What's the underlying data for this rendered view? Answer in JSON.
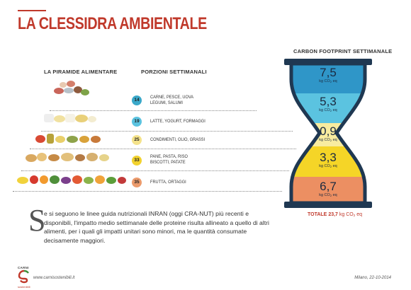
{
  "header": {
    "title": "LA CLESSIDRA AMBIENTALE"
  },
  "columns": {
    "pyramid_heading": "LA PIRAMIDE ALIMENTARE",
    "portions_heading": "PORZIONI SETTIMANALI",
    "carbon_heading": "CARBON FOOTPRINT SETTIMANALE"
  },
  "rows": [
    {
      "portions": "14",
      "label_1": "CARNE, PESCE, UOVA",
      "label_2": "LEGUMI, SALUMI",
      "badge_color": "#3aa8c9"
    },
    {
      "portions": "19",
      "label_1": "LATTE, YOGURT, FORMAGGI",
      "label_2": "",
      "badge_color": "#5bc3e0"
    },
    {
      "portions": "25",
      "label_1": "CONDIMENTI, OLIO, GRASSI",
      "label_2": "",
      "badge_color": "#f4e28a"
    },
    {
      "portions": "33",
      "label_1": "PANE, PASTA, RISO",
      "label_2": "BISCOTTI, PATATE",
      "badge_color": "#f2d22e"
    },
    {
      "portions": "35",
      "label_1": "FRUTTA, ORTAGGI",
      "label_2": "",
      "badge_color": "#ec9b6c"
    }
  ],
  "hourglass": {
    "unit_prefix": "kg CO",
    "unit_sub": "2",
    "unit_suffix": " eq",
    "segments": [
      {
        "value": "7,5",
        "color": "#2f96c8"
      },
      {
        "value": "5,3",
        "color": "#5bc3e0"
      },
      {
        "value": "0,9",
        "color": "#f8ec9f"
      },
      {
        "value": "3,3",
        "color": "#f5d527"
      },
      {
        "value": "6,7",
        "color": "#ec8f62"
      }
    ],
    "frame_color": "#1f3852"
  },
  "total": {
    "label": "TOTALE",
    "value": "23,7",
    "unit_prefix": " kg CO",
    "unit_sub": "2",
    "unit_suffix": " eq"
  },
  "body": {
    "dropcap": "S",
    "text": "e si seguono le linee guida nutrizionali INRAN (oggi CRA-NUT) più recenti e disponibili, l'impatto medio settimanale delle proteine risulta allineato a quello di altri alimenti, per i quali gli impatti unitari sono minori, ma le quantità consumate decisamente maggiori."
  },
  "footer": {
    "logo_text": "CARNI",
    "logo_text_2": "sostenibili",
    "url": "www.carnisostenibili.it",
    "date_place": "Milano, 22-10-2014"
  },
  "colors": {
    "accent": "#c0392b"
  }
}
